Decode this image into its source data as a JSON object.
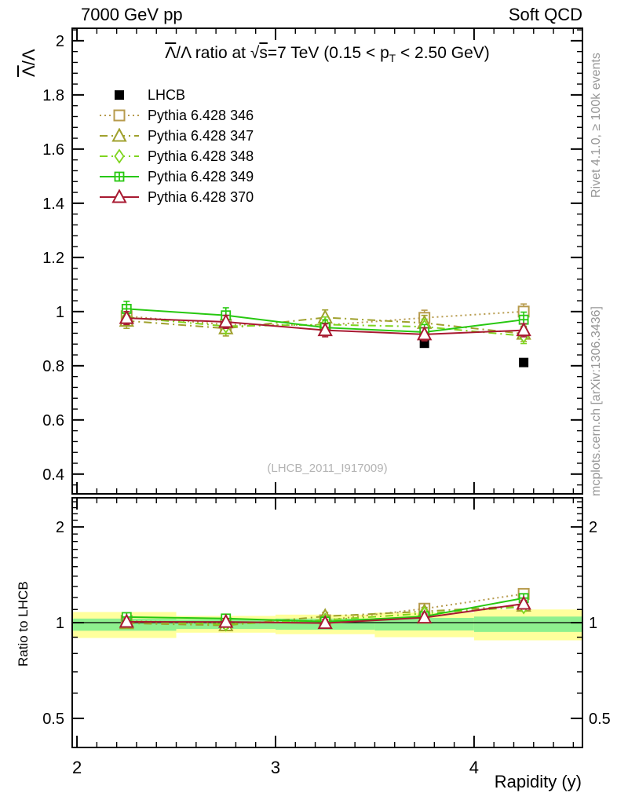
{
  "header": {
    "left": "7000 GeV pp",
    "right": "Soft QCD"
  },
  "title": {
    "lambda_bar": "Λ",
    "rest1": "/Λ ratio at ",
    "sqrt": "√",
    "sqrt_arg": "s",
    "rest2": "=7 TeV (0.15 < p",
    "sub": "T",
    "rest3": " < 2.50 GeV)"
  },
  "axis_labels": {
    "y_main_bar": "Λ",
    "y_main_rest": "/Λ",
    "y_ratio": "Ratio to LHCB",
    "x": "Rapidity (y)"
  },
  "side_notes": {
    "top": "Rivet 4.1.0, ≥ 100k events",
    "bottom": "mcplots.cern.ch [arXiv:1306.3436]"
  },
  "watermark": "(LHCB_2011_I917009)",
  "legend": {
    "entries": [
      {
        "label": "LHCB"
      },
      {
        "label": "Pythia 6.428 346"
      },
      {
        "label": "Pythia 6.428 347"
      },
      {
        "label": "Pythia 6.428 348"
      },
      {
        "label": "Pythia 6.428 349"
      },
      {
        "label": "Pythia 6.428 370"
      }
    ]
  },
  "chart_data": {
    "type": "line",
    "x": [
      2.25,
      2.75,
      3.25,
      3.75,
      4.25
    ],
    "xlim": [
      1.976,
      4.546
    ],
    "x_major_ticks": [
      {
        "v": 2,
        "label": "2"
      },
      {
        "v": 3,
        "label": "3"
      },
      {
        "v": 4,
        "label": "4"
      }
    ],
    "x_minor_step": 0.1,
    "xlabel": "Rapidity (y)",
    "main_panel": {
      "ylabel": "Λ̄/Λ",
      "scale": "linear",
      "ylim": [
        0.327,
        2.046
      ],
      "y_major_ticks": [
        {
          "v": 0.4,
          "label": "0.4"
        },
        {
          "v": 0.6,
          "label": "0.6"
        },
        {
          "v": 0.8,
          "label": "0.8"
        },
        {
          "v": 1.0,
          "label": "1"
        },
        {
          "v": 1.2,
          "label": "1.2"
        },
        {
          "v": 1.4,
          "label": "1.4"
        },
        {
          "v": 1.6,
          "label": "1.6"
        },
        {
          "v": 1.8,
          "label": "1.8"
        },
        {
          "v": 2.0,
          "label": "2"
        }
      ],
      "y_minor_step": 0.04,
      "reference": {
        "name": "LHCB",
        "color": "#000000",
        "marker": "square-filled",
        "dash": null,
        "values": [
          0.97,
          0.957,
          0.934,
          0.883,
          0.812
        ],
        "err": 0.01
      },
      "series": [
        {
          "name": "Pythia 6.428 346",
          "color": "#b79b4d",
          "dash": "2 4",
          "marker": "square-open",
          "values": [
            0.983,
            0.952,
            0.95,
            0.977,
            1.0
          ],
          "err": 0.028
        },
        {
          "name": "Pythia 6.428 347",
          "color": "#a0a12e",
          "dash": "10 5 2 5",
          "marker": "triangle-open",
          "values": [
            0.966,
            0.938,
            0.978,
            0.958,
            0.918
          ],
          "err": 0.028
        },
        {
          "name": "Pythia 6.428 348",
          "color": "#7fd41f",
          "dash": "10 5 2 5",
          "marker": "diamond-open",
          "values": [
            0.979,
            0.946,
            0.952,
            0.944,
            0.91
          ],
          "err": 0.028
        },
        {
          "name": "Pythia 6.428 349",
          "color": "#27c810",
          "dash": null,
          "marker": "square-cross",
          "values": [
            1.01,
            0.986,
            0.941,
            0.924,
            0.97
          ],
          "err": 0.028
        },
        {
          "name": "Pythia 6.428 370",
          "color": "#a81a31",
          "dash": null,
          "marker": "triangle-open",
          "values": [
            0.976,
            0.962,
            0.931,
            0.916,
            0.931
          ],
          "err": 0.024
        }
      ]
    },
    "ratio_panel": {
      "ylabel": "Ratio to LHCB",
      "scale": "log",
      "ylim": [
        0.405,
        2.47
      ],
      "y_major_ticks": [
        {
          "v": 0.5,
          "label": "0.5"
        },
        {
          "v": 1,
          "label": "1"
        },
        {
          "v": 2,
          "label": "2"
        }
      ],
      "y_minor_ticks": [
        0.4,
        0.6,
        0.7,
        0.8,
        0.9,
        1.1,
        1.2,
        1.3,
        1.4,
        1.5,
        1.6,
        1.7,
        1.8,
        1.9,
        2.1,
        2.2,
        2.3,
        2.4
      ],
      "reference_line": 1.0,
      "band_colors": {
        "outer": "#ffff9c",
        "inner": "#8ef08e"
      },
      "bands": [
        {
          "x0": 1.976,
          "x1": 2.5,
          "outer": [
            0.895,
            1.08
          ],
          "inner": [
            0.943,
            1.03
          ]
        },
        {
          "x0": 2.5,
          "x1": 3.0,
          "outer": [
            0.93,
            1.05
          ],
          "inner": [
            0.955,
            1.025
          ]
        },
        {
          "x0": 3.0,
          "x1": 3.5,
          "outer": [
            0.92,
            1.06
          ],
          "inner": [
            0.95,
            1.03
          ]
        },
        {
          "x0": 3.5,
          "x1": 4.0,
          "outer": [
            0.9,
            1.075
          ],
          "inner": [
            0.945,
            1.035
          ]
        },
        {
          "x0": 4.0,
          "x1": 4.546,
          "outer": [
            0.88,
            1.1
          ],
          "inner": [
            0.935,
            1.045
          ]
        }
      ]
    }
  }
}
